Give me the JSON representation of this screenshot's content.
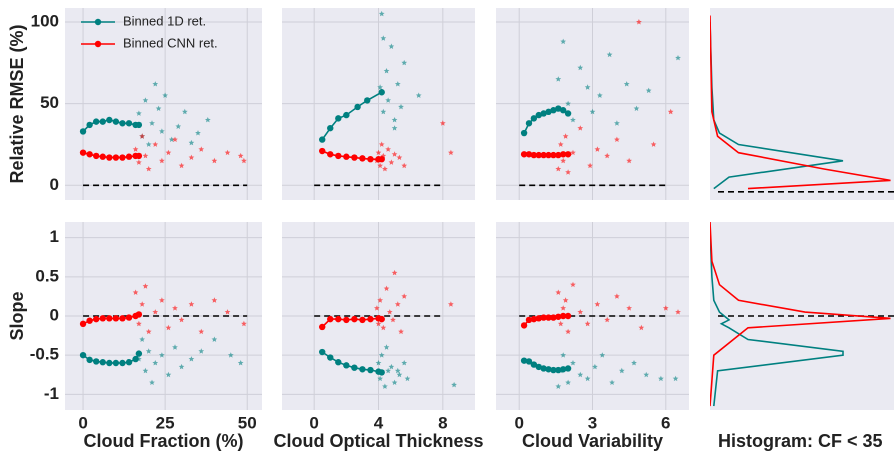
{
  "chart_data": [
    {
      "type": "line",
      "ylabel": "Relative RMSE (%)",
      "xlim": [
        -5.5,
        54.5
      ],
      "ylim": [
        -9,
        108.6
      ],
      "xticks": [
        0,
        25,
        50
      ],
      "yticks": [
        0,
        50,
        100
      ],
      "show_xticklabels": false,
      "show_yticklabels": true,
      "hline": 0,
      "legend": "upper left",
      "series": [
        {
          "color": "#008080",
          "style": "points",
          "x": [
            17,
            18,
            19,
            20,
            21,
            22,
            23,
            24,
            25,
            27,
            29,
            31,
            33,
            35,
            38
          ],
          "values": [
            44,
            30,
            52,
            25,
            38,
            62,
            47,
            33,
            55,
            28,
            36,
            45,
            26,
            32,
            40
          ]
        },
        {
          "color": "#ff0000",
          "style": "points",
          "x": [
            16,
            17,
            18,
            19,
            20,
            22,
            24,
            26,
            28,
            30,
            33,
            36,
            40,
            44,
            48,
            49
          ],
          "values": [
            22,
            14,
            30,
            18,
            10,
            25,
            15,
            20,
            28,
            12,
            17,
            22,
            15,
            20,
            18,
            15
          ]
        },
        {
          "name": "Binned 1D ret.",
          "color": "#008080",
          "style": "line",
          "x": [
            0,
            2,
            4,
            6,
            8,
            10,
            12,
            14,
            16,
            17
          ],
          "values": [
            33,
            37,
            39,
            39,
            40,
            39,
            38,
            38,
            37,
            37
          ]
        },
        {
          "name": "Binned CNN ret.",
          "color": "#ff0000",
          "style": "line",
          "x": [
            0,
            2,
            4,
            6,
            8,
            10,
            12,
            14,
            16,
            17
          ],
          "values": [
            20,
            19,
            18,
            17.5,
            17,
            17,
            17,
            17.5,
            18,
            18
          ]
        }
      ]
    },
    {
      "type": "line",
      "xlim": [
        -2,
        10
      ],
      "ylim": [
        -9,
        108.6
      ],
      "xticks": [
        0,
        4,
        8
      ],
      "yticks": [
        0,
        50,
        100
      ],
      "show_xticklabels": false,
      "show_yticklabels": false,
      "hline": 0,
      "series": [
        {
          "color": "#008080",
          "style": "points",
          "x": [
            4.1,
            4.2,
            4.3,
            4.5,
            4.6,
            4.8,
            5.0,
            5.2,
            5.4,
            5.6,
            6.5,
            4.3,
            5.0
          ],
          "values": [
            60,
            105,
            45,
            70,
            52,
            85,
            40,
            62,
            48,
            75,
            55,
            90,
            35
          ]
        },
        {
          "color": "#ff0000",
          "style": "points",
          "x": [
            3.9,
            4.0,
            4.1,
            4.2,
            4.3,
            4.4,
            4.6,
            4.8,
            5.0,
            5.3,
            5.6,
            8.0,
            8.5
          ],
          "values": [
            15,
            20,
            12,
            25,
            18,
            10,
            22,
            14,
            19,
            17,
            12,
            38,
            20
          ]
        },
        {
          "color": "#008080",
          "style": "line",
          "x": [
            0.5,
            1,
            1.5,
            2,
            2.7,
            3.3,
            4.2
          ],
          "values": [
            28,
            35,
            41,
            43,
            48,
            52,
            57
          ]
        },
        {
          "color": "#ff0000",
          "style": "line",
          "x": [
            0.5,
            1,
            1.5,
            2,
            2.5,
            3,
            3.5,
            4,
            4.2
          ],
          "values": [
            21,
            19,
            18,
            17.5,
            17,
            16.5,
            16,
            16,
            16
          ]
        }
      ]
    },
    {
      "type": "line",
      "xlim": [
        -0.95,
        6.95
      ],
      "ylim": [
        -9,
        108.6
      ],
      "xticks": [
        0,
        3,
        6
      ],
      "yticks": [
        0,
        50,
        100
      ],
      "show_xticklabels": false,
      "show_yticklabels": false,
      "hline": 0,
      "series": [
        {
          "color": "#008080",
          "style": "points",
          "x": [
            1.6,
            1.8,
            2.0,
            2.2,
            2.5,
            2.8,
            3.0,
            3.3,
            3.7,
            4.0,
            4.4,
            4.8,
            5.3,
            6.5
          ],
          "values": [
            65,
            88,
            50,
            40,
            72,
            60,
            45,
            55,
            80,
            38,
            62,
            47,
            58,
            78
          ]
        },
        {
          "color": "#ff0000",
          "style": "points",
          "x": [
            1.6,
            1.7,
            1.8,
            1.9,
            2.0,
            2.2,
            2.5,
            2.9,
            3.2,
            3.6,
            4.0,
            4.5,
            4.9,
            5.5,
            6.2
          ],
          "values": [
            10,
            25,
            15,
            30,
            8,
            20,
            35,
            12,
            22,
            18,
            28,
            15,
            100,
            25,
            45
          ]
        },
        {
          "color": "#008080",
          "style": "line",
          "x": [
            0.2,
            0.4,
            0.6,
            0.8,
            1,
            1.2,
            1.4,
            1.6,
            1.8,
            2.0
          ],
          "values": [
            32,
            38,
            41,
            43,
            44,
            45,
            46,
            47,
            46,
            44
          ]
        },
        {
          "color": "#ff0000",
          "style": "line",
          "x": [
            0.2,
            0.4,
            0.6,
            0.8,
            1,
            1.2,
            1.4,
            1.6,
            1.8,
            2.0
          ],
          "values": [
            19,
            19,
            18.5,
            18.5,
            18.5,
            18.5,
            18.5,
            18.5,
            19,
            19
          ]
        }
      ]
    },
    {
      "type": "line",
      "xlim": [
        0,
        1
      ],
      "ylim": [
        -9,
        108.6
      ],
      "show_xticklabels": false,
      "show_yticklabels": false,
      "hline": -4,
      "series": [
        {
          "color": "#008080",
          "style": "line",
          "x": [
            0.02,
            0.1,
            0.7,
            0.15,
            0.05,
            0.02,
            0.01,
            0
          ],
          "values": [
            -2,
            5,
            15,
            25,
            32,
            40,
            60,
            100
          ]
        },
        {
          "color": "#ff0000",
          "style": "line",
          "x": [
            0.2,
            0.95,
            0.6,
            0.15,
            0.04,
            0.01,
            0
          ],
          "values": [
            -2,
            3,
            10,
            20,
            30,
            45,
            104
          ]
        }
      ]
    },
    {
      "type": "line",
      "ylabel": "Slope",
      "xlabel": "Cloud Fraction (%)",
      "xlim": [
        -5.5,
        54.5
      ],
      "ylim": [
        -1.2,
        1.2
      ],
      "xticks": [
        0,
        25,
        50
      ],
      "yticks": [
        -1,
        -0.5,
        0,
        0.5,
        1
      ],
      "show_xticklabels": true,
      "show_yticklabels": true,
      "hline": 0,
      "series": [
        {
          "color": "#008080",
          "style": "points",
          "x": [
            17,
            18,
            19,
            20,
            21,
            22,
            24,
            26,
            28,
            30,
            33,
            36,
            40,
            45,
            48
          ],
          "values": [
            -0.55,
            -0.3,
            -0.7,
            -0.45,
            -0.85,
            -0.6,
            -0.5,
            -0.75,
            -0.4,
            -0.65,
            -0.55,
            -0.45,
            -0.3,
            -0.5,
            -0.6
          ]
        },
        {
          "color": "#ff0000",
          "style": "points",
          "x": [
            16,
            17,
            18,
            19,
            20,
            22,
            24,
            26,
            28,
            30,
            33,
            36,
            40,
            44,
            49
          ],
          "values": [
            0.3,
            -0.1,
            0.15,
            0.38,
            -0.2,
            0.05,
            0.2,
            -0.15,
            0.1,
            -0.05,
            0.15,
            -0.2,
            0.2,
            0.05,
            -0.1
          ]
        },
        {
          "color": "#008080",
          "style": "line",
          "x": [
            0,
            2,
            4,
            6,
            8,
            10,
            12,
            14,
            16,
            17
          ],
          "values": [
            -0.5,
            -0.56,
            -0.58,
            -0.59,
            -0.6,
            -0.6,
            -0.6,
            -0.59,
            -0.55,
            -0.48
          ]
        },
        {
          "color": "#ff0000",
          "style": "line",
          "x": [
            0,
            2,
            4,
            6,
            8,
            10,
            12,
            14,
            16,
            17
          ],
          "values": [
            -0.1,
            -0.06,
            -0.04,
            -0.03,
            -0.03,
            -0.03,
            -0.03,
            -0.02,
            0,
            0.02
          ]
        }
      ]
    },
    {
      "type": "line",
      "xlabel": "Cloud Optical Thickness",
      "xlim": [
        -2,
        10
      ],
      "ylim": [
        -1.2,
        1.2
      ],
      "xticks": [
        0,
        4,
        8
      ],
      "yticks": [
        -1,
        -0.5,
        0,
        0.5,
        1
      ],
      "show_xticklabels": true,
      "show_yticklabels": false,
      "hline": 0,
      "series": [
        {
          "color": "#008080",
          "style": "points",
          "x": [
            4.0,
            4.1,
            4.2,
            4.4,
            4.6,
            4.8,
            5.0,
            5.3,
            5.6,
            5.8,
            4.5,
            5.2,
            8.7
          ],
          "values": [
            -0.6,
            -0.8,
            -0.5,
            -0.9,
            -0.7,
            -0.65,
            -0.85,
            -0.75,
            -0.6,
            -0.8,
            -0.4,
            -0.7,
            -0.88
          ]
        },
        {
          "color": "#ff0000",
          "style": "points",
          "x": [
            3.9,
            4.0,
            4.1,
            4.3,
            4.5,
            4.7,
            4.9,
            5.0,
            5.2,
            5.4,
            5.6,
            8.5
          ],
          "values": [
            0.1,
            -0.1,
            0.2,
            -0.15,
            0.35,
            0.05,
            -0.05,
            0.55,
            0.15,
            -0.2,
            0.25,
            0.15
          ]
        },
        {
          "color": "#008080",
          "style": "line",
          "x": [
            0.5,
            1,
            1.5,
            2,
            2.5,
            3,
            3.5,
            4,
            4.2
          ],
          "values": [
            -0.46,
            -0.53,
            -0.59,
            -0.63,
            -0.66,
            -0.68,
            -0.69,
            -0.71,
            -0.72
          ]
        },
        {
          "color": "#ff0000",
          "style": "line",
          "x": [
            0.5,
            1,
            1.5,
            2,
            2.5,
            3,
            3.5,
            4,
            4.2
          ],
          "values": [
            -0.14,
            -0.04,
            -0.04,
            -0.05,
            -0.04,
            -0.05,
            -0.04,
            -0.03,
            -0.04
          ]
        }
      ]
    },
    {
      "type": "line",
      "xlabel": "Cloud Variability",
      "xlim": [
        -0.95,
        6.95
      ],
      "ylim": [
        -1.2,
        1.2
      ],
      "xticks": [
        0,
        3,
        6
      ],
      "yticks": [
        -1,
        -0.5,
        0,
        0.5,
        1
      ],
      "show_xticklabels": true,
      "show_yticklabels": false,
      "hline": 0,
      "series": [
        {
          "color": "#008080",
          "style": "points",
          "x": [
            1.6,
            1.7,
            1.8,
            2.0,
            2.2,
            2.5,
            2.8,
            3.1,
            3.4,
            3.8,
            4.2,
            4.7,
            5.2,
            5.8,
            6.4
          ],
          "values": [
            -0.9,
            -0.7,
            -0.5,
            -0.85,
            -0.6,
            -0.75,
            -0.8,
            -0.65,
            -0.5,
            -0.85,
            -0.7,
            -0.6,
            -0.75,
            -0.8,
            -0.8
          ]
        },
        {
          "color": "#ff0000",
          "style": "points",
          "x": [
            1.6,
            1.7,
            1.8,
            1.9,
            2.0,
            2.2,
            2.5,
            2.8,
            3.2,
            3.6,
            4.0,
            4.5,
            5.0,
            6.0,
            6.5
          ],
          "values": [
            0.3,
            -0.1,
            0.1,
            0.2,
            -0.2,
            0.4,
            0.05,
            -0.1,
            0.15,
            -0.05,
            0.25,
            0.1,
            -0.15,
            0.1,
            0.05
          ]
        },
        {
          "color": "#008080",
          "style": "line",
          "x": [
            0.2,
            0.4,
            0.6,
            0.8,
            1,
            1.2,
            1.4,
            1.6,
            1.8,
            2.0
          ],
          "values": [
            -0.57,
            -0.58,
            -0.62,
            -0.65,
            -0.67,
            -0.68,
            -0.69,
            -0.69,
            -0.68,
            -0.67
          ]
        },
        {
          "color": "#ff0000",
          "style": "line",
          "x": [
            0.2,
            0.4,
            0.6,
            0.8,
            1,
            1.2,
            1.4,
            1.6,
            1.8,
            2.0
          ],
          "values": [
            -0.12,
            -0.05,
            -0.04,
            -0.03,
            -0.02,
            -0.02,
            -0.02,
            -0.01,
            0,
            0
          ]
        }
      ]
    },
    {
      "type": "line",
      "xlabel": "Histogram: CF < 35",
      "xlim": [
        0,
        1
      ],
      "ylim": [
        -1.2,
        1.2
      ],
      "show_xticklabels": false,
      "show_yticklabels": false,
      "hline": 0,
      "series": [
        {
          "color": "#008080",
          "style": "line",
          "x": [
            0.02,
            0.04,
            0.7,
            0.7,
            0.2,
            0.1,
            0.06,
            0.1,
            0.05,
            0.02,
            0.01,
            0
          ],
          "values": [
            -1.15,
            -0.7,
            -0.5,
            -0.45,
            -0.3,
            -0.15,
            -0.1,
            -0.05,
            0.05,
            0.2,
            0.5,
            1.1
          ]
        },
        {
          "color": "#ff0000",
          "style": "line",
          "x": [
            0,
            0.02,
            0.2,
            0.95,
            0.5,
            0.15,
            0.05,
            0.01,
            0
          ],
          "values": [
            -1.15,
            -0.5,
            -0.15,
            -0.03,
            0.05,
            0.2,
            0.4,
            0.7,
            1.2
          ]
        }
      ]
    }
  ]
}
